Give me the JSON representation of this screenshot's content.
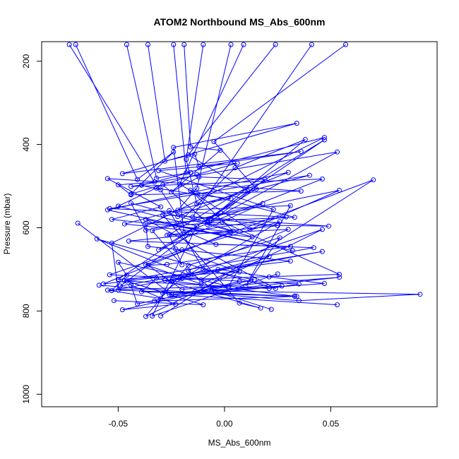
{
  "chart_data": {
    "type": "line",
    "title": "ATOM2 Northbound MS_Abs_600nm",
    "xlabel": "MS_Abs_600nm",
    "ylabel": "Pressure (mbar)",
    "xlim": [
      -0.086,
      0.1
    ],
    "ylim": [
      1030,
      153
    ],
    "y_reversed": true,
    "xticks": [
      -0.05,
      0.0,
      0.05
    ],
    "xtick_labels": [
      "-0.05",
      "0.00",
      "0.05"
    ],
    "yticks": [
      200,
      400,
      600,
      800,
      1000
    ],
    "ytick_labels": [
      "200",
      "400",
      "600",
      "800",
      "1000"
    ],
    "grid": false,
    "line_color": "#0000ff",
    "markers": "open-circle",
    "series": [
      {
        "x": [
          -0.073,
          -0.033,
          -0.05,
          -0.044,
          0.036,
          -0.055,
          -0.03,
          -0.053,
          0.003,
          -0.057,
          0.031,
          -0.036,
          -0.037,
          0.033,
          -0.016,
          0.004,
          -0.026,
          -0.01,
          0.014,
          -0.041,
          -0.044,
          -0.023,
          -0.048,
          0.002,
          -0.055,
          -0.03,
          0.027,
          -0.029,
          -0.02,
          0.026,
          -0.02,
          -0.054,
          0.035,
          0.021,
          -0.046,
          -0.026,
          0.053
        ],
        "y": [
          160,
          490,
          497,
          521,
          512,
          482,
          550,
          580,
          610,
          735,
          680,
          645,
          589,
          575,
          510,
          608,
          559,
          700,
          725,
          783,
          738,
          784,
          797,
          740,
          750,
          770,
          740,
          757,
          722,
          585,
          653,
          713,
          735,
          746,
          728,
          760,
          785
        ]
      },
      {
        "x": [
          -0.07,
          -0.041,
          -0.024,
          -0.044,
          -0.013,
          0.006,
          -0.031,
          0.023,
          0.002,
          -0.05,
          -0.046,
          -0.053,
          0.046,
          -0.049,
          -0.016,
          -0.004,
          0.031,
          -0.027,
          -0.036,
          -0.02,
          0.054,
          -0.006,
          0.092,
          0.035,
          -0.059
        ],
        "y": [
          160,
          484,
          418,
          519,
          472,
          445,
          463,
          556,
          740,
          683,
          714,
          751,
          657,
          740,
          614,
          640,
          645,
          688,
          690,
          748,
          719,
          752,
          760,
          775,
          738
        ]
      },
      {
        "x": [
          -0.046,
          -0.032,
          -0.016,
          -0.039,
          -0.03,
          -0.022,
          0.03,
          -0.055,
          0.032,
          -0.037,
          0.024,
          -0.06,
          -0.011,
          -0.003,
          0.021,
          0.047,
          -0.025,
          -0.069
        ],
        "y": [
          160,
          481,
          467,
          498,
          509,
          573,
          467,
          557,
          655,
          580,
          746,
          627,
          725,
          700,
          718,
          734,
          760,
          589
        ]
      },
      {
        "x": [
          -0.036,
          -0.028,
          -0.014,
          -0.012,
          0.036,
          -0.048,
          0.034,
          -0.024,
          -0.019,
          0.046,
          -0.044,
          0.053,
          -0.008,
          -0.029,
          -0.05,
          -0.013,
          -0.034,
          0.025
        ],
        "y": [
          160,
          440,
          423,
          453,
          417,
          470,
          349,
          407,
          612,
          483,
          501,
          418,
          587,
          497,
          548,
          596,
          812,
          711
        ]
      },
      {
        "x": [
          -0.019,
          -0.016,
          -0.002,
          -0.025,
          -0.012,
          0.019,
          -0.008,
          0.049,
          -0.029,
          0.007,
          0.017,
          -0.032,
          -0.039,
          0.033
        ],
        "y": [
          160,
          406,
          414,
          514,
          478,
          484,
          592,
          596,
          569,
          781,
          793,
          721,
          754,
          764
        ]
      },
      {
        "x": [
          0.003,
          -0.013,
          -0.022,
          0.031,
          0.01,
          0.026,
          -0.017,
          -0.037,
          0.046,
          -0.025,
          0.021,
          -0.011,
          -0.037,
          0.07,
          -0.03
        ],
        "y": [
          160,
          505,
          558,
          547,
          740,
          624,
          690,
          813,
          604,
          728,
          669,
          735,
          689,
          485,
          812
        ]
      },
      {
        "x": [
          0.009,
          -0.021,
          0.012,
          0.054,
          -0.037,
          -0.044,
          0.013,
          -0.047,
          0.04,
          -0.054,
          0.029,
          -0.027,
          0.03,
          -0.017,
          -0.004,
          0.022
        ],
        "y": [
          160,
          495,
          604,
          510,
          606,
          541,
          622,
          591,
          474,
          554,
          574,
          618,
          604,
          703,
          754,
          796
        ]
      },
      {
        "x": [
          0.024,
          -0.017,
          0.011,
          -0.008,
          0.038,
          0.005,
          -0.023,
          -0.001,
          0.054,
          -0.028,
          0.034,
          -0.014,
          0.007
        ],
        "y": [
          160,
          425,
          512,
          584,
          388,
          456,
          595,
          586,
          712,
          726,
          765,
          754,
          729
        ]
      },
      {
        "x": [
          0.057,
          -0.005,
          0.015,
          -0.031,
          0.018,
          -0.034,
          -0.02,
          -0.026,
          0.047,
          -0.05,
          0.007,
          -0.023
        ],
        "y": [
          160,
          393,
          507,
          653,
          542,
          607,
          689,
          617,
          389,
          724,
          706,
          651
        ]
      },
      {
        "x": [
          0.041,
          -0.015,
          0.025,
          -0.045,
          0.042,
          -0.047,
          -0.01,
          -0.052
        ],
        "y": [
          160,
          574,
          595,
          632,
          648,
          727,
          785,
          775
        ]
      },
      {
        "x": [
          -0.024,
          -0.018,
          0.047,
          -0.053,
          -0.05,
          0.033,
          -0.033
        ],
        "y": [
          160,
          468,
          383,
          637,
          750,
          765,
          776
        ]
      },
      {
        "x": [
          -0.01,
          -0.018,
          -0.013,
          0.003,
          -0.011,
          -0.032
        ],
        "y": [
          160,
          436,
          543,
          530,
          522,
          505
        ]
      }
    ]
  }
}
